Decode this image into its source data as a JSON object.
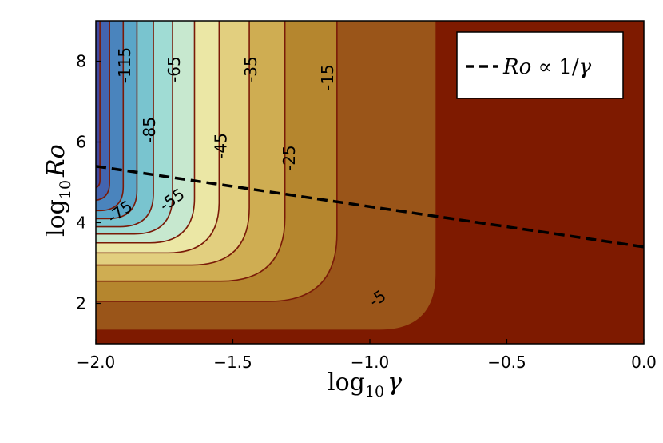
{
  "chart_data": {
    "type": "contour",
    "xlabel": "log10 γ",
    "ylabel": "log10 Ro",
    "xlim": [
      -2.0,
      0.0
    ],
    "ylim": [
      1,
      9
    ],
    "xticks": [
      -2.0,
      -1.5,
      -1.0,
      -0.5,
      0.0
    ],
    "xtick_labels": [
      "−2.0",
      "−1.5",
      "−1.0",
      "−0.5",
      "0.0"
    ],
    "yticks": [
      2,
      4,
      6,
      8
    ],
    "ytick_labels": [
      "2",
      "4",
      "6",
      "8"
    ],
    "contour_levels": [
      -5,
      -15,
      -25,
      -35,
      -45,
      -55,
      -65,
      -75,
      -85,
      -95,
      -105,
      -115,
      -125
    ],
    "contour_labels": [
      {
        "text": "-115",
        "x": -1.89,
        "y": 7.9
      },
      {
        "text": "-85",
        "x": -1.8,
        "y": 6.3
      },
      {
        "text": "-65",
        "x": -1.71,
        "y": 7.8
      },
      {
        "text": "-45",
        "x": -1.54,
        "y": 5.9
      },
      {
        "text": "-35",
        "x": -1.43,
        "y": 7.8
      },
      {
        "text": "-25",
        "x": -1.29,
        "y": 5.6
      },
      {
        "text": "-15",
        "x": -1.15,
        "y": 7.6
      },
      {
        "text": "-75",
        "x": -1.91,
        "y": 4.25
      },
      {
        "text": "-55",
        "x": -1.72,
        "y": 4.55
      },
      {
        "text": "-5",
        "x": -0.97,
        "y": 2.1
      }
    ],
    "colormap": [
      "#7e1a00",
      "#9a5519",
      "#b5862e",
      "#cfad52",
      "#e2cf7f",
      "#ebe7a5",
      "#c7e8cf",
      "#a0dcd4",
      "#79c4cf",
      "#5aa6c8",
      "#4a84bd",
      "#4364b0",
      "#3f49a3"
    ],
    "lines": [
      {
        "name": "Ro ∝ 1/γ",
        "style": "dashed",
        "color": "#000000",
        "x": [
          -2.0,
          0.0
        ],
        "y": [
          5.4,
          3.4
        ]
      }
    ],
    "legend": {
      "position": "top-right",
      "entries": [
        "Ro ∝ 1/γ"
      ]
    }
  }
}
